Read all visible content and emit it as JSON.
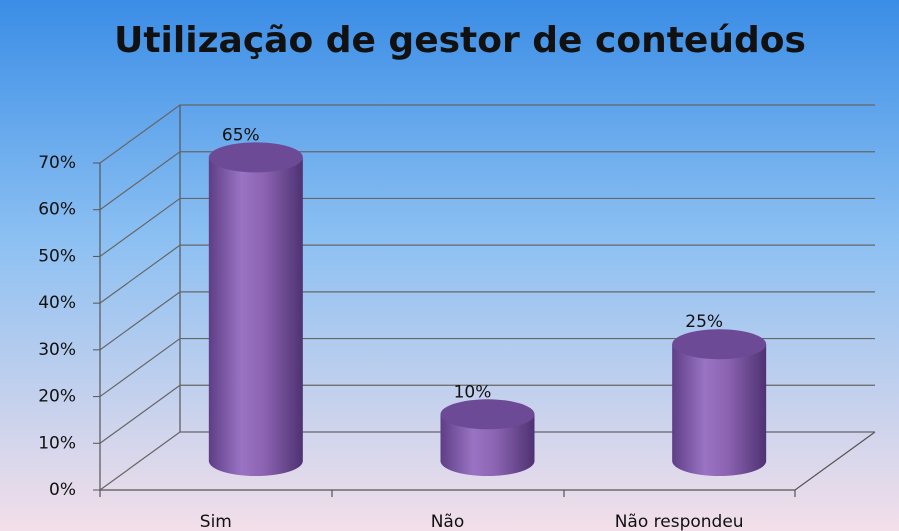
{
  "chart_data": {
    "type": "bar3d",
    "title": "Utilização de gestor de conteúdos",
    "categories": [
      "Sim",
      "Não",
      "Não respondeu"
    ],
    "values": [
      65,
      10,
      25
    ],
    "value_labels": [
      "65%",
      "10%",
      "25%"
    ],
    "color": "#8a62b0",
    "ylim": [
      0,
      70
    ],
    "yticks": [
      {
        "value": 0,
        "label": "0%"
      },
      {
        "value": 10,
        "label": "10%"
      },
      {
        "value": 20,
        "label": "20%"
      },
      {
        "value": 30,
        "label": "30%"
      },
      {
        "value": 40,
        "label": "40%"
      },
      {
        "value": 50,
        "label": "50%"
      },
      {
        "value": 60,
        "label": "60%"
      },
      {
        "value": 70,
        "label": "70%"
      }
    ],
    "grid": true
  }
}
